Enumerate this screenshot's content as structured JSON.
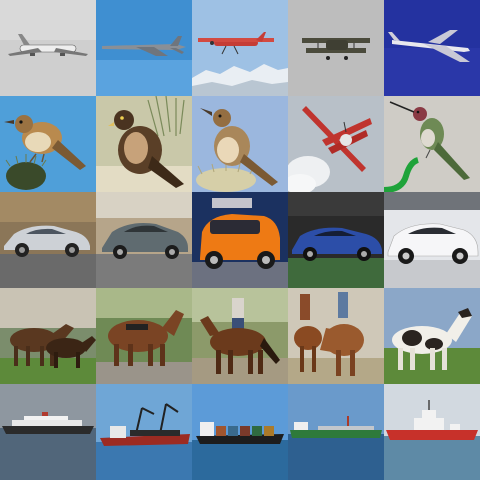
{
  "grid": {
    "rows": 5,
    "columns": 5,
    "tiles": [
      {
        "category": "airplane",
        "subject": "jet-airliner-gray-sky"
      },
      {
        "category": "airplane",
        "subject": "military-jet-blue-sky"
      },
      {
        "category": "airplane",
        "subject": "red-prop-plane-over-mountains"
      },
      {
        "category": "airplane",
        "subject": "biplane-gray-sky"
      },
      {
        "category": "airplane",
        "subject": "airliner-deep-blue-sky"
      },
      {
        "category": "bird",
        "subject": "wren-on-thistle"
      },
      {
        "category": "bird",
        "subject": "hawk-in-grass"
      },
      {
        "category": "bird",
        "subject": "wren-singing"
      },
      {
        "category": "airplane",
        "subject": "red-biplane-stunt-smoke"
      },
      {
        "category": "bird",
        "subject": "hummingbird-feeder"
      },
      {
        "category": "automobile",
        "subject": "silver-sedan"
      },
      {
        "category": "automobile",
        "subject": "gray-sedan"
      },
      {
        "category": "automobile",
        "subject": "orange-concept-car"
      },
      {
        "category": "automobile",
        "subject": "blue-coupe"
      },
      {
        "category": "automobile",
        "subject": "white-concept-car"
      },
      {
        "category": "horse",
        "subject": "two-horses-saddled"
      },
      {
        "category": "horse",
        "subject": "horse-with-harness"
      },
      {
        "category": "horse",
        "subject": "rider-on-brown-horse"
      },
      {
        "category": "horse",
        "subject": "riders-on-horses"
      },
      {
        "category": "horse",
        "subject": "pinto-horses-field"
      },
      {
        "category": "ship",
        "subject": "ocean-liner-gray-sea"
      },
      {
        "category": "ship",
        "subject": "cargo-ship-cranes"
      },
      {
        "category": "ship",
        "subject": "container-ship"
      },
      {
        "category": "ship",
        "subject": "tanker-ship"
      },
      {
        "category": "ship",
        "subject": "red-icebreaker"
      }
    ]
  },
  "palette": {
    "gray_sky": "#c9c9c9",
    "blue_sky": "#3f8fd1",
    "deep_blue": "#2a37a8",
    "sea": "#4d6f8e",
    "grass": "#5d8a3a"
  }
}
